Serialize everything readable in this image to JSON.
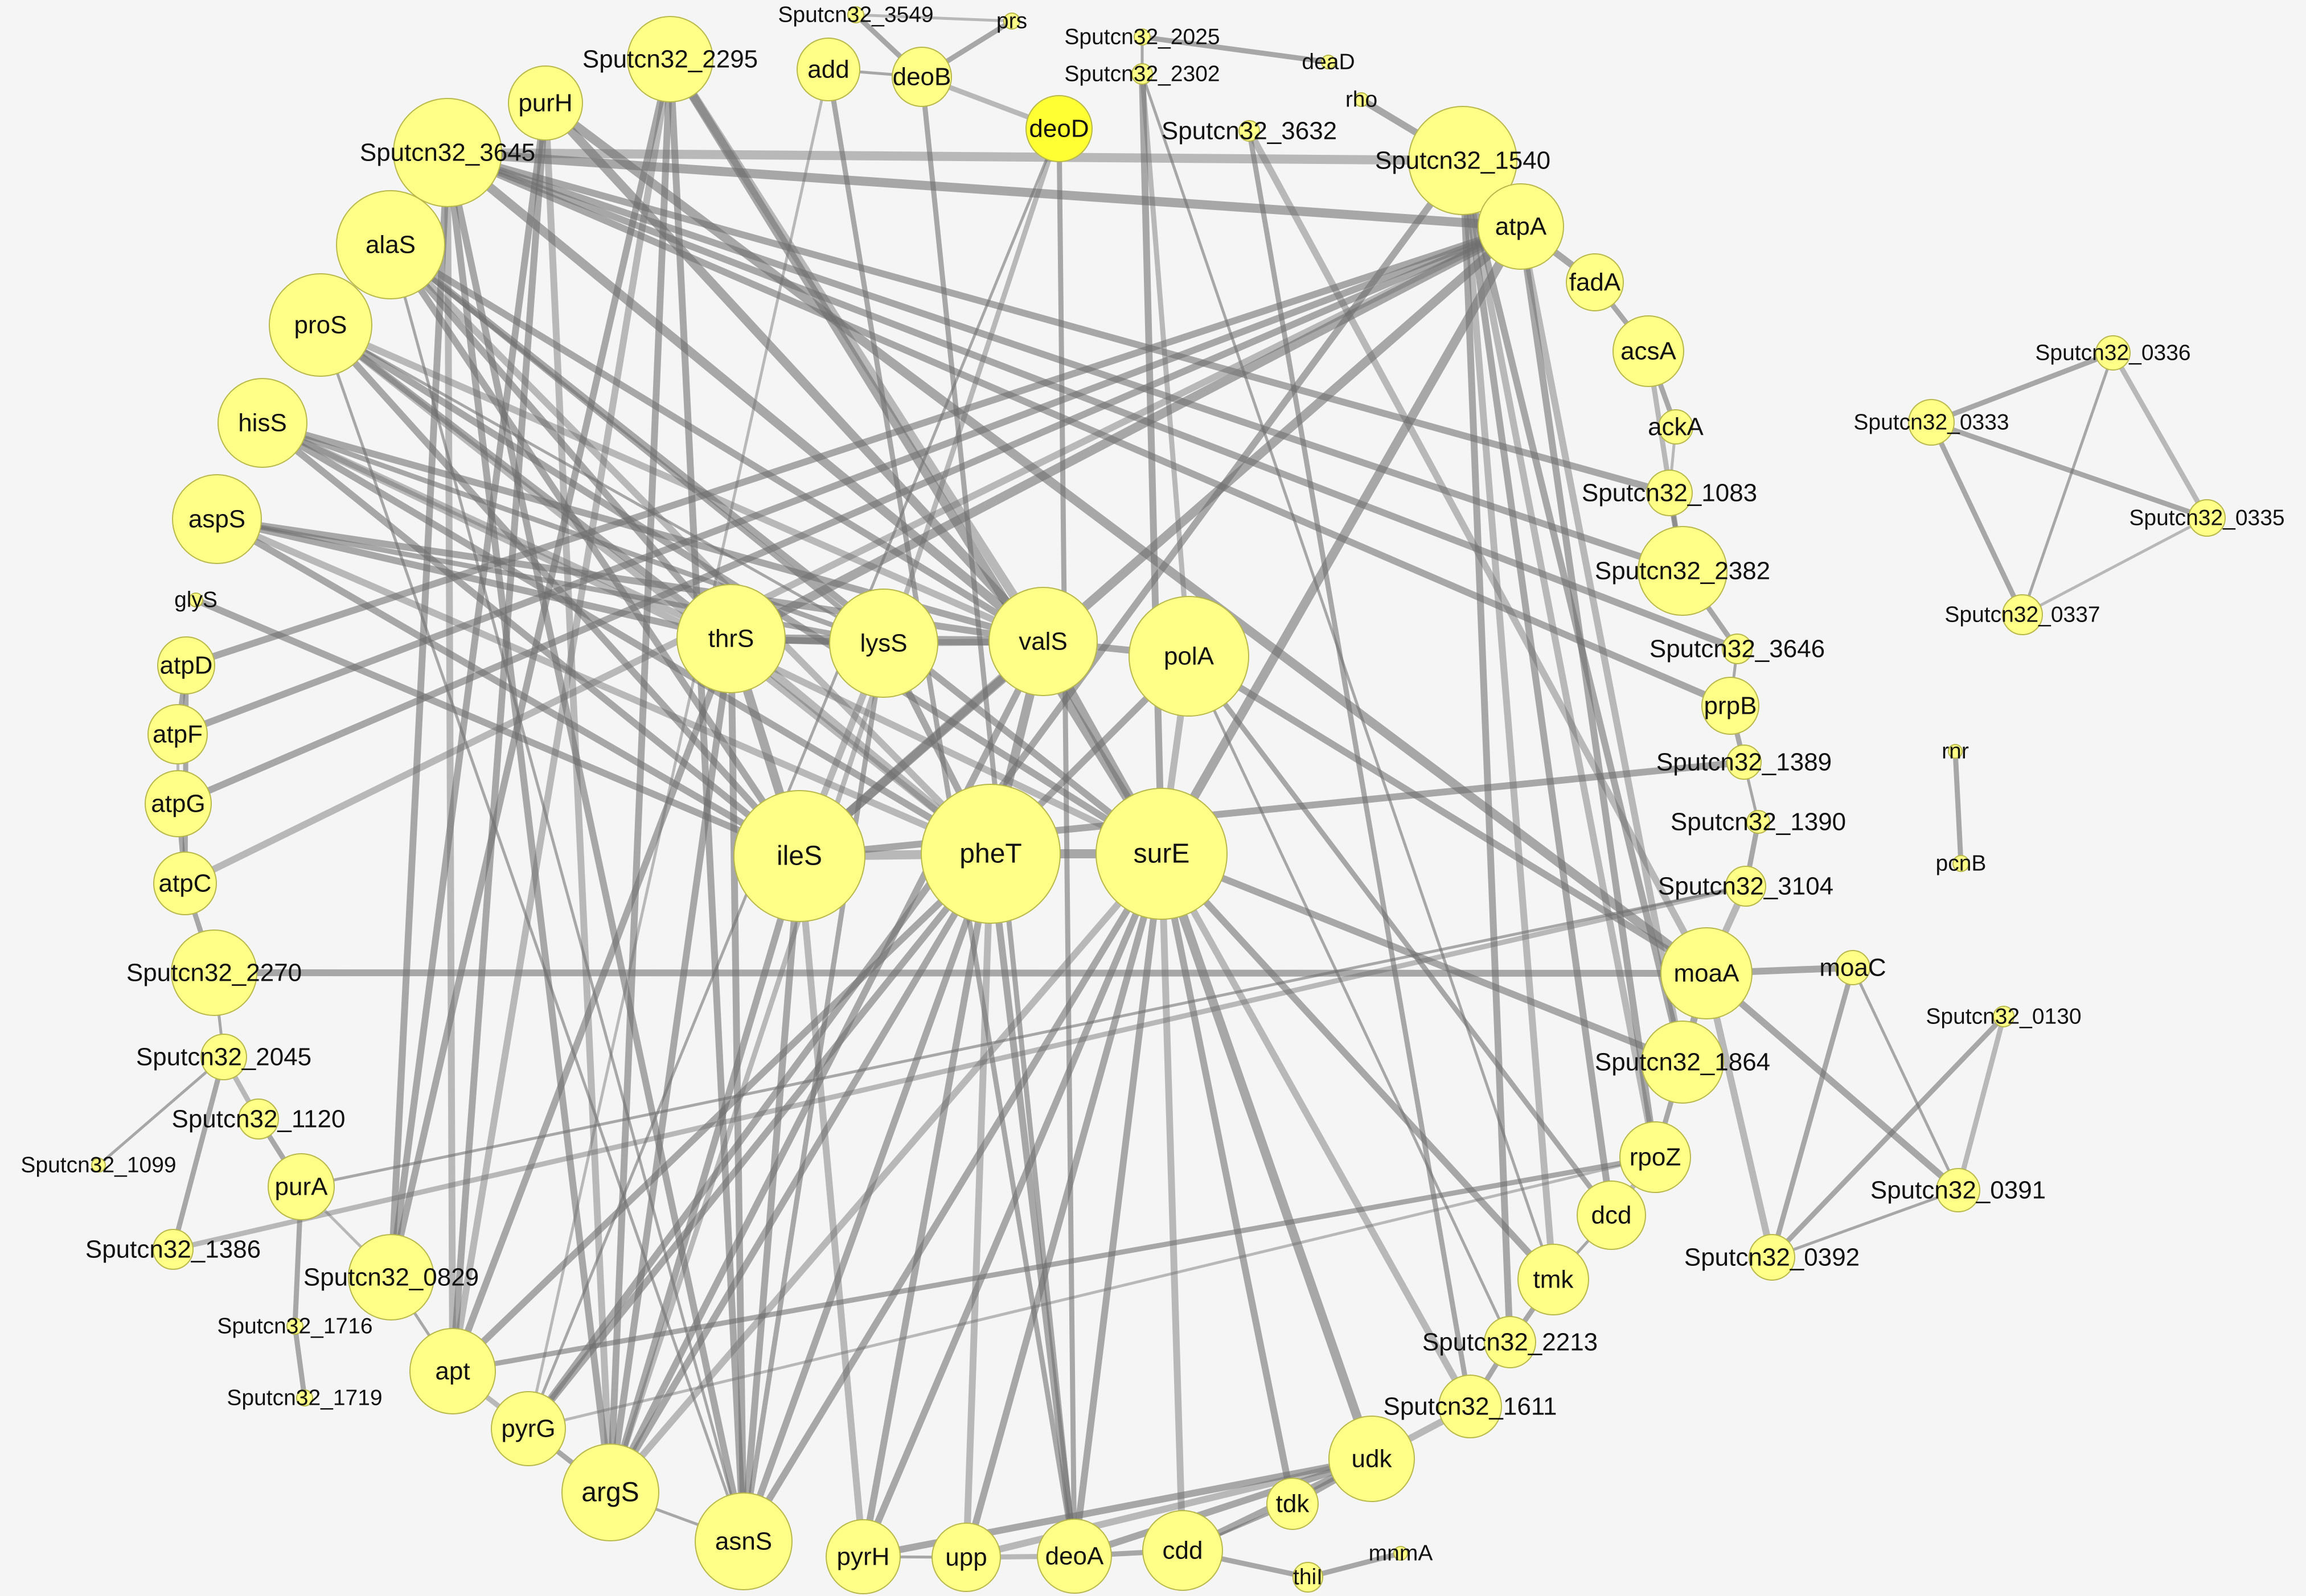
{
  "nodes": [
    {
      "id": "Sputcn32_3549",
      "label": "Sputcn32_3549"
    },
    {
      "id": "prs",
      "label": "prs"
    },
    {
      "id": "Sputcn32_2025",
      "label": "Sputcn32_2025"
    },
    {
      "id": "deaD",
      "label": "deaD"
    },
    {
      "id": "Sputcn32_2302",
      "label": "Sputcn32_2302"
    },
    {
      "id": "rho",
      "label": "rho"
    },
    {
      "id": "add",
      "label": "add"
    },
    {
      "id": "deoB",
      "label": "deoB"
    },
    {
      "id": "deoD",
      "label": "deoD"
    },
    {
      "id": "Sputcn32_2295",
      "label": "Sputcn32_2295"
    },
    {
      "id": "purH",
      "label": "purH"
    },
    {
      "id": "Sputcn32_3645",
      "label": "Sputcn32_3645"
    },
    {
      "id": "Sputcn32_3632",
      "label": "Sputcn32_3632"
    },
    {
      "id": "Sputcn32_1540",
      "label": "Sputcn32_1540"
    },
    {
      "id": "atpA",
      "label": "atpA"
    },
    {
      "id": "alaS",
      "label": "alaS"
    },
    {
      "id": "fadA",
      "label": "fadA"
    },
    {
      "id": "proS",
      "label": "proS"
    },
    {
      "id": "acsA",
      "label": "acsA"
    },
    {
      "id": "hisS",
      "label": "hisS"
    },
    {
      "id": "ackA",
      "label": "ackA"
    },
    {
      "id": "aspS",
      "label": "aspS"
    },
    {
      "id": "Sputcn32_1083",
      "label": "Sputcn32_1083"
    },
    {
      "id": "Sputcn32_2382",
      "label": "Sputcn32_2382"
    },
    {
      "id": "glyS",
      "label": "glyS"
    },
    {
      "id": "Sputcn32_3646",
      "label": "Sputcn32_3646"
    },
    {
      "id": "atpD",
      "label": "atpD"
    },
    {
      "id": "thrS",
      "label": "thrS"
    },
    {
      "id": "lysS",
      "label": "lysS"
    },
    {
      "id": "valS",
      "label": "valS"
    },
    {
      "id": "polA",
      "label": "polA"
    },
    {
      "id": "prpB",
      "label": "prpB"
    },
    {
      "id": "atpF",
      "label": "atpF"
    },
    {
      "id": "Sputcn32_1389",
      "label": "Sputcn32_1389"
    },
    {
      "id": "atpG",
      "label": "atpG"
    },
    {
      "id": "Sputcn32_1390",
      "label": "Sputcn32_1390"
    },
    {
      "id": "ileS",
      "label": "ileS"
    },
    {
      "id": "pheT",
      "label": "pheT"
    },
    {
      "id": "surE",
      "label": "surE"
    },
    {
      "id": "atpC",
      "label": "atpC"
    },
    {
      "id": "Sputcn32_3104",
      "label": "Sputcn32_3104"
    },
    {
      "id": "Sputcn32_2270",
      "label": "Sputcn32_2270"
    },
    {
      "id": "moaA",
      "label": "moaA"
    },
    {
      "id": "moaC",
      "label": "moaC"
    },
    {
      "id": "Sputcn32_2045",
      "label": "Sputcn32_2045"
    },
    {
      "id": "Sputcn32_1864",
      "label": "Sputcn32_1864"
    },
    {
      "id": "Sputcn32_1120",
      "label": "Sputcn32_1120"
    },
    {
      "id": "Sputcn32_1099",
      "label": "Sputcn32_1099"
    },
    {
      "id": "rpoZ",
      "label": "rpoZ"
    },
    {
      "id": "purA",
      "label": "purA"
    },
    {
      "id": "Sputcn32_1386",
      "label": "Sputcn32_1386"
    },
    {
      "id": "dcd",
      "label": "dcd"
    },
    {
      "id": "Sputcn32_0829",
      "label": "Sputcn32_0829"
    },
    {
      "id": "tmk",
      "label": "tmk"
    },
    {
      "id": "Sputcn32_1716",
      "label": "Sputcn32_1716"
    },
    {
      "id": "Sputcn32_2213",
      "label": "Sputcn32_2213"
    },
    {
      "id": "apt",
      "label": "apt"
    },
    {
      "id": "Sputcn32_1719",
      "label": "Sputcn32_1719"
    },
    {
      "id": "Sputcn32_1611",
      "label": "Sputcn32_1611"
    },
    {
      "id": "pyrG",
      "label": "pyrG"
    },
    {
      "id": "udk",
      "label": "udk"
    },
    {
      "id": "argS",
      "label": "argS"
    },
    {
      "id": "tdk",
      "label": "tdk"
    },
    {
      "id": "asnS",
      "label": "asnS"
    },
    {
      "id": "pyrH",
      "label": "pyrH"
    },
    {
      "id": "upp",
      "label": "upp"
    },
    {
      "id": "deoA",
      "label": "deoA"
    },
    {
      "id": "cdd",
      "label": "cdd"
    },
    {
      "id": "mnmA",
      "label": "mnmA"
    },
    {
      "id": "thiI",
      "label": "thiI"
    },
    {
      "id": "Sputcn32_0336",
      "label": "Sputcn32_0336"
    },
    {
      "id": "Sputcn32_0333",
      "label": "Sputcn32_0333"
    },
    {
      "id": "Sputcn32_0335",
      "label": "Sputcn32_0335"
    },
    {
      "id": "Sputcn32_0337",
      "label": "Sputcn32_0337"
    },
    {
      "id": "rnr",
      "label": "rnr"
    },
    {
      "id": "pcnB",
      "label": "pcnB"
    },
    {
      "id": "Sputcn32_0130",
      "label": "Sputcn32_0130"
    },
    {
      "id": "Sputcn32_0391",
      "label": "Sputcn32_0391"
    },
    {
      "id": "Sputcn32_0392",
      "label": "Sputcn32_0392"
    }
  ],
  "edges": [
    [
      "Sputcn32_3549",
      "prs"
    ],
    [
      "Sputcn32_3549",
      "deoB"
    ],
    [
      "prs",
      "deoB"
    ],
    [
      "add",
      "deoB"
    ],
    [
      "deoB",
      "deoD"
    ],
    [
      "Sputcn32_2025",
      "deaD"
    ],
    [
      "Sputcn32_2025",
      "Sputcn32_2302"
    ],
    [
      "rho",
      "Sputcn32_1540"
    ],
    [
      "Sputcn32_2302",
      "polA"
    ],
    [
      "Sputcn32_2302",
      "tmk"
    ],
    [
      "Sputcn32_2302",
      "surE"
    ],
    [
      "Sputcn32_3632",
      "Sputcn32_1611"
    ],
    [
      "Sputcn32_3632",
      "moaA"
    ],
    [
      "Sputcn32_3645",
      "atpA"
    ],
    [
      "Sputcn32_3645",
      "prpB"
    ],
    [
      "Sputcn32_3645",
      "Sputcn32_2382"
    ],
    [
      "Sputcn32_3645",
      "Sputcn32_1540"
    ],
    [
      "Sputcn32_3645",
      "Sputcn32_1083"
    ],
    [
      "Sputcn32_3645",
      "valS"
    ],
    [
      "Sputcn32_3645",
      "Sputcn32_3646"
    ],
    [
      "Sputcn32_3645",
      "apt"
    ],
    [
      "Sputcn32_3645",
      "Sputcn32_0829"
    ],
    [
      "Sputcn32_3645",
      "argS"
    ],
    [
      "Sputcn32_3645",
      "asnS"
    ],
    [
      "Sputcn32_2295",
      "valS"
    ],
    [
      "Sputcn32_2295",
      "surE"
    ],
    [
      "Sputcn32_2295",
      "asnS"
    ],
    [
      "Sputcn32_2295",
      "argS"
    ],
    [
      "Sputcn32_2295",
      "apt"
    ],
    [
      "Sputcn32_2295",
      "Sputcn32_0829"
    ],
    [
      "purH",
      "apt"
    ],
    [
      "purH",
      "valS"
    ],
    [
      "purH",
      "argS"
    ],
    [
      "purH",
      "Sputcn32_0829"
    ],
    [
      "purH",
      "moaA"
    ],
    [
      "add",
      "deoA"
    ],
    [
      "add",
      "pyrG"
    ],
    [
      "deoB",
      "deoA"
    ],
    [
      "deoD",
      "deoA"
    ],
    [
      "deoD",
      "pyrG"
    ],
    [
      "deoD",
      "argS"
    ],
    [
      "atpA",
      "atpD"
    ],
    [
      "atpA",
      "atpF"
    ],
    [
      "atpA",
      "atpG"
    ],
    [
      "atpA",
      "atpC"
    ],
    [
      "atpA",
      "surE"
    ],
    [
      "atpA",
      "thrS"
    ],
    [
      "atpA",
      "ileS"
    ],
    [
      "atpA",
      "Sputcn32_1864"
    ],
    [
      "atpA",
      "rpoZ"
    ],
    [
      "atpA",
      "fadA"
    ],
    [
      "Sputcn32_1540",
      "dcd"
    ],
    [
      "Sputcn32_1540",
      "tmk"
    ],
    [
      "Sputcn32_1540",
      "pyrG"
    ],
    [
      "Sputcn32_1540",
      "Sputcn32_1864"
    ],
    [
      "Sputcn32_1540",
      "Sputcn32_2213"
    ],
    [
      "Sputcn32_1540",
      "rpoZ"
    ],
    [
      "alaS",
      "valS"
    ],
    [
      "alaS",
      "thrS"
    ],
    [
      "alaS",
      "lysS"
    ],
    [
      "alaS",
      "pheT"
    ],
    [
      "alaS",
      "ileS"
    ],
    [
      "alaS",
      "surE"
    ],
    [
      "alaS",
      "asnS"
    ],
    [
      "proS",
      "valS"
    ],
    [
      "proS",
      "thrS"
    ],
    [
      "proS",
      "lysS"
    ],
    [
      "proS",
      "ileS"
    ],
    [
      "proS",
      "pheT"
    ],
    [
      "proS",
      "asnS"
    ],
    [
      "proS",
      "surE"
    ],
    [
      "hisS",
      "valS"
    ],
    [
      "hisS",
      "thrS"
    ],
    [
      "hisS",
      "lysS"
    ],
    [
      "hisS",
      "ileS"
    ],
    [
      "hisS",
      "pheT"
    ],
    [
      "hisS",
      "surE"
    ],
    [
      "aspS",
      "valS"
    ],
    [
      "aspS",
      "thrS"
    ],
    [
      "aspS",
      "lysS"
    ],
    [
      "aspS",
      "pheT"
    ],
    [
      "aspS",
      "ileS"
    ],
    [
      "glyS",
      "ileS"
    ],
    [
      "atpD",
      "atpF"
    ],
    [
      "atpF",
      "atpG"
    ],
    [
      "atpG",
      "atpC"
    ],
    [
      "atpD",
      "atpC"
    ],
    [
      "thrS",
      "lysS"
    ],
    [
      "lysS",
      "valS"
    ],
    [
      "valS",
      "polA"
    ],
    [
      "thrS",
      "valS"
    ],
    [
      "thrS",
      "ileS"
    ],
    [
      "thrS",
      "pheT"
    ],
    [
      "thrS",
      "argS"
    ],
    [
      "thrS",
      "asnS"
    ],
    [
      "thrS",
      "apt"
    ],
    [
      "lysS",
      "ileS"
    ],
    [
      "lysS",
      "pheT"
    ],
    [
      "lysS",
      "asnS"
    ],
    [
      "valS",
      "pheT"
    ],
    [
      "valS",
      "ileS"
    ],
    [
      "valS",
      "surE"
    ],
    [
      "valS",
      "argS"
    ],
    [
      "polA",
      "pheT"
    ],
    [
      "polA",
      "surE"
    ],
    [
      "polA",
      "Sputcn32_2213"
    ],
    [
      "polA",
      "dcd"
    ],
    [
      "polA",
      "moaA"
    ],
    [
      "ileS",
      "pheT"
    ],
    [
      "pheT",
      "surE"
    ],
    [
      "ileS",
      "argS"
    ],
    [
      "ileS",
      "asnS"
    ],
    [
      "ileS",
      "pyrH"
    ],
    [
      "pheT",
      "argS"
    ],
    [
      "pheT",
      "asnS"
    ],
    [
      "pheT",
      "apt"
    ],
    [
      "pheT",
      "upp"
    ],
    [
      "pheT",
      "pyrH"
    ],
    [
      "pheT",
      "deoA"
    ],
    [
      "pheT",
      "pyrG"
    ],
    [
      "surE",
      "cdd"
    ],
    [
      "surE",
      "tdk"
    ],
    [
      "surE",
      "udk"
    ],
    [
      "surE",
      "deoA"
    ],
    [
      "surE",
      "Sputcn32_1611"
    ],
    [
      "surE",
      "tmk"
    ],
    [
      "surE",
      "pyrH"
    ],
    [
      "surE",
      "upp"
    ],
    [
      "surE",
      "argS"
    ],
    [
      "surE",
      "asnS"
    ],
    [
      "acsA",
      "ackA"
    ],
    [
      "fadA",
      "acsA"
    ],
    [
      "ackA",
      "Sputcn32_1083"
    ],
    [
      "Sputcn32_1083",
      "Sputcn32_2382"
    ],
    [
      "Sputcn32_2382",
      "Sputcn32_3646"
    ],
    [
      "Sputcn32_3646",
      "prpB"
    ],
    [
      "acsA",
      "Sputcn32_2382"
    ],
    [
      "prpB",
      "Sputcn32_1389"
    ],
    [
      "Sputcn32_1389",
      "Sputcn32_1390"
    ],
    [
      "Sputcn32_1390",
      "Sputcn32_3104"
    ],
    [
      "Sputcn32_3104",
      "moaA"
    ],
    [
      "Sputcn32_1389",
      "ileS"
    ],
    [
      "moaA",
      "moaC"
    ],
    [
      "moaA",
      "Sputcn32_1864"
    ],
    [
      "moaA",
      "Sputcn32_0392"
    ],
    [
      "moaA",
      "Sputcn32_0391"
    ],
    [
      "moaC",
      "Sputcn32_0392"
    ],
    [
      "moaC",
      "Sputcn32_0391"
    ],
    [
      "Sputcn32_0130",
      "Sputcn32_0391"
    ],
    [
      "Sputcn32_0130",
      "Sputcn32_0392"
    ],
    [
      "Sputcn32_0391",
      "Sputcn32_0392"
    ],
    [
      "Sputcn32_1864",
      "rpoZ"
    ],
    [
      "rpoZ",
      "dcd"
    ],
    [
      "dcd",
      "tmk"
    ],
    [
      "tmk",
      "Sputcn32_2213"
    ],
    [
      "Sputcn32_2213",
      "Sputcn32_1611"
    ],
    [
      "Sputcn32_1611",
      "udk"
    ],
    [
      "udk",
      "tdk"
    ],
    [
      "udk",
      "cdd"
    ],
    [
      "udk",
      "deoA"
    ],
    [
      "udk",
      "upp"
    ],
    [
      "udk",
      "pyrH"
    ],
    [
      "tdk",
      "cdd"
    ],
    [
      "cdd",
      "deoA"
    ],
    [
      "deoA",
      "upp"
    ],
    [
      "upp",
      "pyrH"
    ],
    [
      "cdd",
      "thiI"
    ],
    [
      "thiI",
      "mnmA"
    ],
    [
      "rpoZ",
      "pyrG"
    ],
    [
      "rpoZ",
      "apt"
    ],
    [
      "Sputcn32_1864",
      "surE"
    ],
    [
      "Sputcn32_3104",
      "purA"
    ],
    [
      "Sputcn32_3104",
      "Sputcn32_1386"
    ],
    [
      "Sputcn32_2270",
      "atpC"
    ],
    [
      "Sputcn32_2270",
      "Sputcn32_2045"
    ],
    [
      "Sputcn32_2270",
      "moaA"
    ],
    [
      "Sputcn32_2045",
      "Sputcn32_1120"
    ],
    [
      "Sputcn32_2045",
      "Sputcn32_1099"
    ],
    [
      "Sputcn32_2045",
      "Sputcn32_1386"
    ],
    [
      "Sputcn32_1120",
      "purA"
    ],
    [
      "purA",
      "Sputcn32_0829"
    ],
    [
      "purA",
      "Sputcn32_1716"
    ],
    [
      "Sputcn32_1716",
      "Sputcn32_1719"
    ],
    [
      "Sputcn32_0829",
      "apt"
    ],
    [
      "apt",
      "pyrG"
    ],
    [
      "pyrG",
      "argS"
    ],
    [
      "argS",
      "asnS"
    ],
    [
      "Sputcn32_0336",
      "Sputcn32_0333"
    ],
    [
      "Sputcn32_0336",
      "Sputcn32_0335"
    ],
    [
      "Sputcn32_0336",
      "Sputcn32_0337"
    ],
    [
      "Sputcn32_0333",
      "Sputcn32_0335"
    ],
    [
      "Sputcn32_0333",
      "Sputcn32_0337"
    ],
    [
      "Sputcn32_0335",
      "Sputcn32_0337"
    ],
    [
      "rnr",
      "pcnB"
    ]
  ]
}
